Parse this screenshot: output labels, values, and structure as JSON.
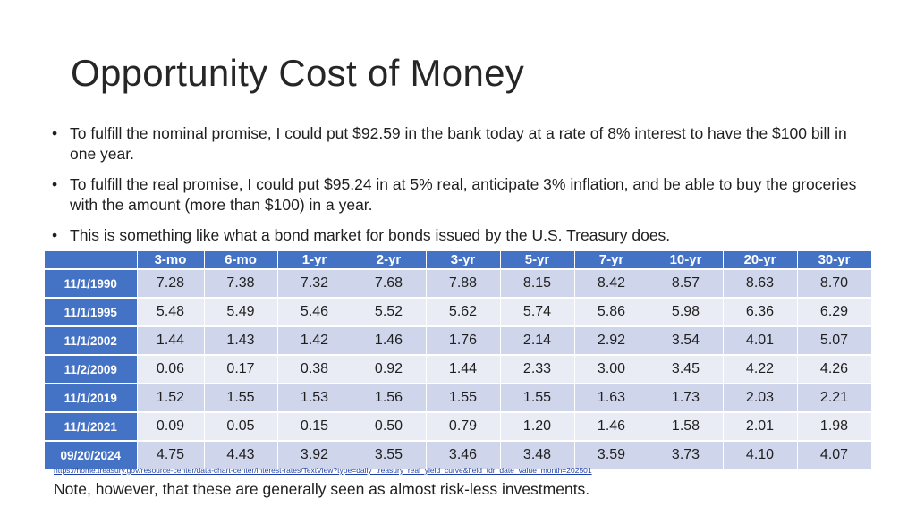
{
  "slide": {
    "title": "Opportunity Cost of Money",
    "bullets": [
      "To fulfill the nominal promise, I could put $92.59 in the bank today at a rate of 8% interest to have the $100 bill in one year.",
      "To fulfill the real promise, I could put $95.24 in at 5% real, anticipate 3% inflation, and be able to buy the groceries with the amount (more than $100) in a year.",
      "This is something like what a bond market for bonds issued by the U.S. Treasury does."
    ],
    "bullet_symbol": "•",
    "source_url": "https://home.treasury.gov/resource-center/data-chart-center/interest-rates/TextView?type=daily_treasury_real_yield_curve&field_tdr_date_value_month=202501",
    "note": "Note, however, that these are generally seen as almost risk-less investments."
  },
  "table": {
    "corner": "",
    "columns": [
      "3-mo",
      "6-mo",
      "1-yr",
      "2-yr",
      "3-yr",
      "5-yr",
      "7-yr",
      "10-yr",
      "20-yr",
      "30-yr"
    ],
    "rows": [
      {
        "date": "11/1/1990",
        "values": [
          "7.28",
          "7.38",
          "7.32",
          "7.68",
          "7.88",
          "8.15",
          "8.42",
          "8.57",
          "8.63",
          "8.70"
        ]
      },
      {
        "date": "11/1/1995",
        "values": [
          "5.48",
          "5.49",
          "5.46",
          "5.52",
          "5.62",
          "5.74",
          "5.86",
          "5.98",
          "6.36",
          "6.29"
        ]
      },
      {
        "date": "11/1/2002",
        "values": [
          "1.44",
          "1.43",
          "1.42",
          "1.46",
          "1.76",
          "2.14",
          "2.92",
          "3.54",
          "4.01",
          "5.07"
        ]
      },
      {
        "date": "11/2/2009",
        "values": [
          "0.06",
          "0.17",
          "0.38",
          "0.92",
          "1.44",
          "2.33",
          "3.00",
          "3.45",
          "4.22",
          "4.26"
        ]
      },
      {
        "date": "11/1/2019",
        "values": [
          "1.52",
          "1.55",
          "1.53",
          "1.56",
          "1.55",
          "1.55",
          "1.63",
          "1.73",
          "2.03",
          "2.21"
        ]
      },
      {
        "date": "11/1/2021",
        "values": [
          "0.09",
          "0.05",
          "0.15",
          "0.50",
          "0.79",
          "1.20",
          "1.46",
          "1.58",
          "2.01",
          "1.98"
        ]
      },
      {
        "date": "09/20/2024",
        "values": [
          "4.75",
          "4.43",
          "3.92",
          "3.55",
          "3.46",
          "3.48",
          "3.59",
          "3.73",
          "4.10",
          "4.07"
        ]
      }
    ]
  },
  "colors": {
    "header_blue": "#4472c4",
    "row_band_dark": "#cfd5ea",
    "row_band_light": "#e9ebf5",
    "link": "#1f3fa8"
  }
}
